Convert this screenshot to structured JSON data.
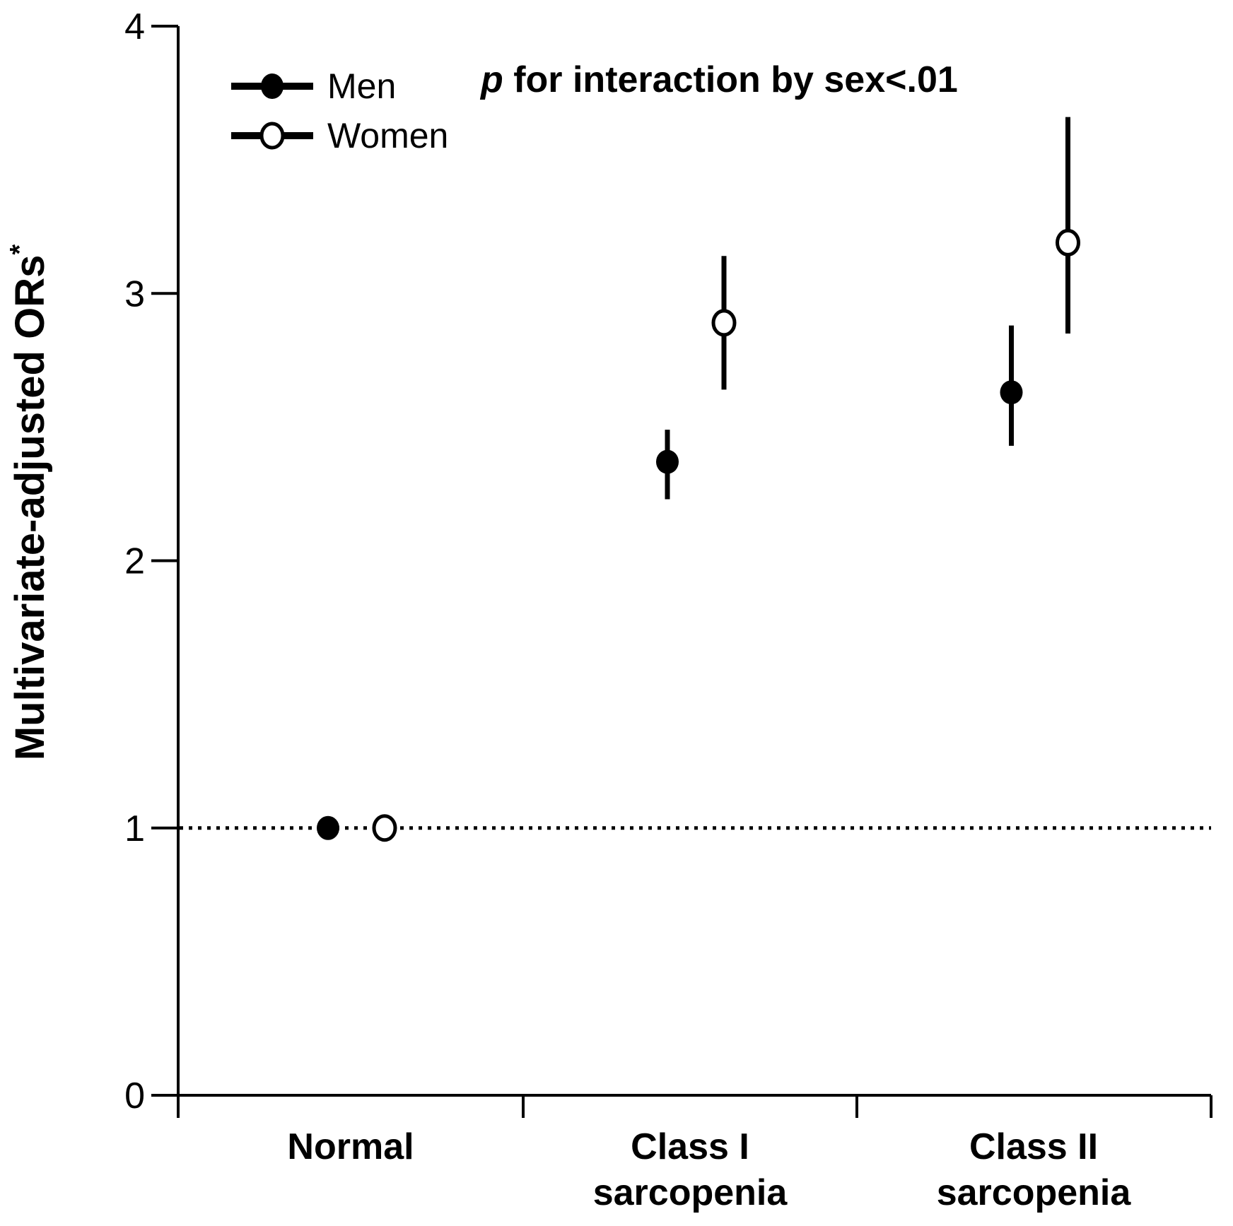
{
  "chart_data": {
    "type": "scatter",
    "subtype": "forest-plot-odds-ratios-with-95ci",
    "title": "",
    "ylabel": "Multivariate-adjusted ORs*",
    "ylabel_main": "Multivariate-adjusted ORs",
    "ylabel_superscript": "*",
    "xlabel": "",
    "ylim": [
      0,
      4
    ],
    "yticks": [
      0,
      1,
      2,
      3,
      4
    ],
    "grid": false,
    "reference_line_y": 1,
    "reference_line_style": "dotted",
    "annotation_p": "p",
    "annotation_rest": " for interaction by sex<.01",
    "legend_position": "top-left",
    "categories": [
      "Normal",
      "Class I sarcopenia",
      "Class II sarcopenia"
    ],
    "category_label_lines": [
      [
        "Normal"
      ],
      [
        "Class I",
        "sarcopenia"
      ],
      [
        "Class II",
        "sarcopenia"
      ]
    ],
    "series": [
      {
        "name": "Men",
        "marker": "filled-circle",
        "color": "#000000",
        "points": [
          {
            "category": "Normal",
            "or": 1.0,
            "ci_low": null,
            "ci_high": null
          },
          {
            "category": "Class I sarcopenia",
            "or": 2.37,
            "ci_low": 2.23,
            "ci_high": 2.49
          },
          {
            "category": "Class II sarcopenia",
            "or": 2.63,
            "ci_low": 2.43,
            "ci_high": 2.88
          }
        ]
      },
      {
        "name": "Women",
        "marker": "open-circle",
        "color": "#000000",
        "points": [
          {
            "category": "Normal",
            "or": 1.0,
            "ci_low": null,
            "ci_high": null
          },
          {
            "category": "Class I sarcopenia",
            "or": 2.89,
            "ci_low": 2.64,
            "ci_high": 3.14
          },
          {
            "category": "Class II sarcopenia",
            "or": 3.19,
            "ci_low": 2.85,
            "ci_high": 3.66
          }
        ]
      }
    ],
    "colors": {
      "ink": "#000000",
      "background": "#ffffff"
    }
  }
}
